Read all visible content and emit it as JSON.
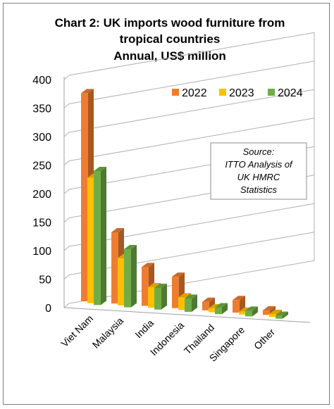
{
  "chart_data": {
    "type": "bar",
    "title_lines": [
      "Chart 2: UK imports wood furniture from",
      "tropical countries",
      "Annual, US$ million"
    ],
    "categories": [
      "Viet Nam",
      "Malaysia",
      "India",
      "Indonesia",
      "Thailand",
      "Singapore",
      "Other"
    ],
    "series": [
      {
        "name": "2022",
        "color": "#ed7d31",
        "values": [
          365,
          125,
          68,
          55,
          15,
          22,
          8
        ]
      },
      {
        "name": "2023",
        "color": "#ffc000",
        "values": [
          220,
          83,
          36,
          22,
          7,
          5,
          5
        ]
      },
      {
        "name": "2024",
        "color": "#70ad47",
        "values": [
          235,
          102,
          38,
          23,
          12,
          10,
          5
        ]
      }
    ],
    "y_ticks": [
      "0",
      "50",
      "100",
      "150",
      "200",
      "250",
      "300",
      "350",
      "400"
    ],
    "ylim": [
      0,
      400
    ],
    "grid": true,
    "legend_position": "top-right",
    "note_lines": [
      "Source:",
      "ITTO Analysis of",
      "UK HMRC",
      "Statistics"
    ]
  }
}
